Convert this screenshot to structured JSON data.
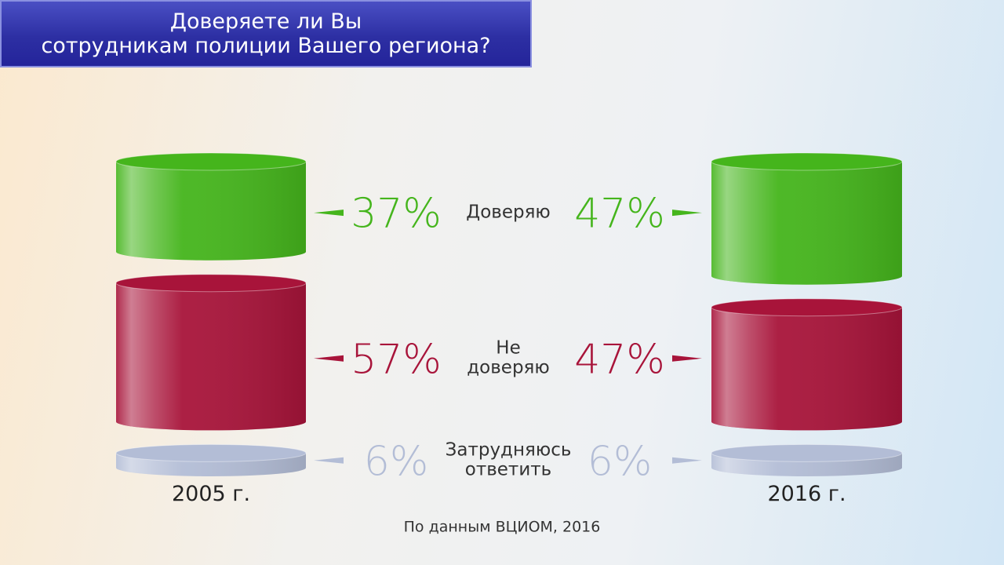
{
  "chart_data": {
    "type": "cylinder-stack",
    "title": "Доверяете ли Вы\nсотрудникам полиции Вашего региона?",
    "categories": [
      "2005 г.",
      "2016 г."
    ],
    "series": [
      {
        "name": "Доверяю",
        "color": "#45b51c",
        "values": [
          37,
          47
        ],
        "value_labels": [
          "37%",
          "47%"
        ]
      },
      {
        "name": "Не\nдоверяю",
        "color": "#a8143a",
        "values": [
          57,
          47
        ],
        "value_labels": [
          "57%",
          "47%"
        ]
      },
      {
        "name": "Затрудняюсь\nответить",
        "color": "#b3bdd6",
        "values": [
          6,
          6
        ],
        "value_labels": [
          "6%",
          "6%"
        ]
      }
    ],
    "source": "По данным ВЦИОМ, 2016"
  }
}
